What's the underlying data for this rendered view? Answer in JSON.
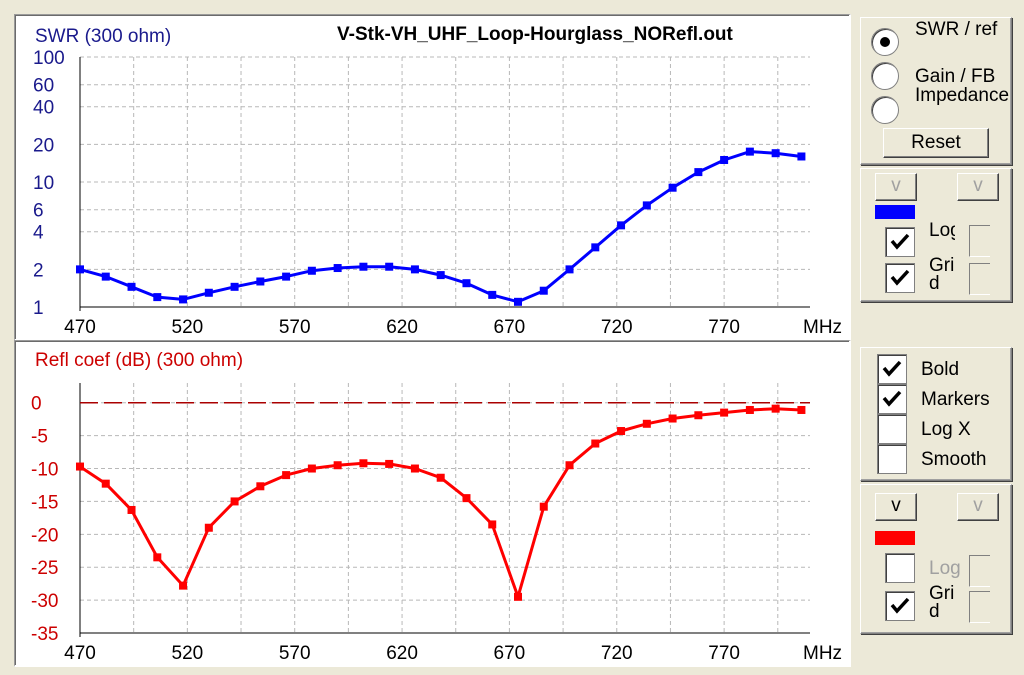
{
  "window_title": "V-Stk-VH_UHF_Loop-Hourglass_NORefl.out",
  "colors": {
    "swr": "#0000ff",
    "refl": "#ff0000",
    "grid": "#b8b8b8",
    "axis_swr": "#1a1a8c",
    "axis_refl": "#cc0000"
  },
  "swr_panel": {
    "radios": [
      {
        "label": "SWR / ref",
        "checked": true
      },
      {
        "label": "Gain / FB",
        "checked": false
      },
      {
        "label": "Impedance",
        "checked": false
      }
    ],
    "reset_label": "Reset",
    "v_left": "v",
    "v_right": "v",
    "log_label": "Log",
    "log_checked": true,
    "grid_label": "Grid",
    "grid_checked": true
  },
  "options_panel": {
    "items": [
      {
        "label": "Bold",
        "checked": true
      },
      {
        "label": "Markers",
        "checked": true
      },
      {
        "label": "Log X",
        "checked": false
      },
      {
        "label": "Smooth",
        "checked": false
      }
    ]
  },
  "refl_panel": {
    "v_left": "v",
    "v_right": "v",
    "log_label": "Log",
    "log_checked": false,
    "grid_label": "Grid",
    "grid_checked": true
  },
  "chart_data": [
    {
      "type": "line",
      "title": "V-Stk-VH_UHF_Loop-Hourglass_NORefl.out",
      "ylabel": "SWR (300 ohm)",
      "xlabel": "MHz",
      "x_ticks": [
        "470",
        "520",
        "570",
        "620",
        "670",
        "720",
        "770"
      ],
      "y_ticks": [
        "100",
        "60",
        "40",
        "20",
        "10",
        "6",
        "4",
        "2",
        "1"
      ],
      "xlim": [
        470,
        810
      ],
      "ylim": [
        1,
        100
      ],
      "y_scale": "log",
      "grid": true,
      "series": [
        {
          "x": [
            470,
            482,
            494,
            506,
            518,
            530,
            542,
            554,
            566,
            578,
            590,
            602,
            614,
            626,
            638,
            650,
            662,
            674,
            686,
            698,
            710,
            722,
            734,
            746,
            758,
            770,
            782,
            794,
            806
          ],
          "values": [
            2.0,
            1.75,
            1.45,
            1.2,
            1.15,
            1.3,
            1.45,
            1.6,
            1.75,
            1.95,
            2.05,
            2.1,
            2.1,
            2.0,
            1.8,
            1.55,
            1.25,
            1.1,
            1.35,
            2.0,
            3.0,
            4.5,
            6.5,
            9.0,
            12,
            15,
            17.5,
            17,
            16
          ]
        }
      ]
    },
    {
      "type": "line",
      "ylabel": "Refl coef (dB) (300 ohm)",
      "xlabel": "MHz",
      "x_ticks": [
        "470",
        "520",
        "570",
        "620",
        "670",
        "720",
        "770"
      ],
      "y_ticks": [
        "0",
        "-5",
        "-10",
        "-15",
        "-20",
        "-25",
        "-30",
        "-35"
      ],
      "xlim": [
        470,
        810
      ],
      "ylim": [
        -35,
        3
      ],
      "grid": true,
      "reference_line": 0,
      "series": [
        {
          "x": [
            470,
            482,
            494,
            506,
            518,
            530,
            542,
            554,
            566,
            578,
            590,
            602,
            614,
            626,
            638,
            650,
            662,
            674,
            686,
            698,
            710,
            722,
            734,
            746,
            758,
            770,
            782,
            794,
            806
          ],
          "values": [
            -9.7,
            -12.3,
            -16.3,
            -23.5,
            -27.8,
            -19,
            -15,
            -12.7,
            -11,
            -10,
            -9.5,
            -9.2,
            -9.3,
            -10,
            -11.4,
            -14.5,
            -18.5,
            -29.5,
            -15.8,
            -9.5,
            -6.2,
            -4.3,
            -3.2,
            -2.4,
            -1.9,
            -1.5,
            -1.1,
            -0.9,
            -1.1
          ]
        }
      ]
    }
  ]
}
